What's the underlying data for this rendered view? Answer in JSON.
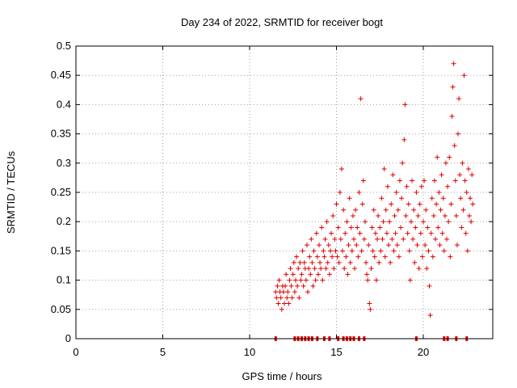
{
  "chart_data": {
    "type": "scatter",
    "title": "Day 234 of 2022, SRMTID for receiver bogt",
    "xlabel": "GPS time / hours",
    "ylabel": "SRMTID / TECUs",
    "xlim": [
      0,
      24
    ],
    "ylim": [
      0,
      0.5
    ],
    "x_ticks": [
      0,
      5,
      10,
      15,
      20
    ],
    "x_tick_labels": [
      "0",
      "5",
      "10",
      "15",
      "20"
    ],
    "y_ticks": [
      0,
      0.05,
      0.1,
      0.15,
      0.2,
      0.25,
      0.3,
      0.35,
      0.4,
      0.45,
      0.5
    ],
    "y_tick_labels": [
      "0",
      "0.05",
      "0.1",
      "0.15",
      "0.2",
      "0.25",
      "0.3",
      "0.35",
      "0.4",
      "0.45",
      "0.5"
    ],
    "grid": true,
    "marker": "+",
    "series": [
      {
        "name": "SRMTID",
        "color": "#e00000",
        "points": [
          [
            11.5,
            0.08
          ],
          [
            11.55,
            0.07
          ],
          [
            11.6,
            0.09
          ],
          [
            11.65,
            0.06
          ],
          [
            11.7,
            0.1
          ],
          [
            11.75,
            0.08
          ],
          [
            11.8,
            0.07
          ],
          [
            11.85,
            0.05
          ],
          [
            11.9,
            0.09
          ],
          [
            11.95,
            0.08
          ],
          [
            12.0,
            0.06
          ],
          [
            12.05,
            0.09
          ],
          [
            12.1,
            0.11
          ],
          [
            12.15,
            0.07
          ],
          [
            12.2,
            0.08
          ],
          [
            12.25,
            0.06
          ],
          [
            12.3,
            0.1
          ],
          [
            12.35,
            0.12
          ],
          [
            12.4,
            0.09
          ],
          [
            12.45,
            0.07
          ],
          [
            12.5,
            0.11
          ],
          [
            12.55,
            0.13
          ],
          [
            12.6,
            0.08
          ],
          [
            12.65,
            0.1
          ],
          [
            12.7,
            0.14
          ],
          [
            12.75,
            0.09
          ],
          [
            12.8,
            0.12
          ],
          [
            12.85,
            0.07
          ],
          [
            12.9,
            0.13
          ],
          [
            12.95,
            0.1
          ],
          [
            13.0,
            0.11
          ],
          [
            13.05,
            0.15
          ],
          [
            13.1,
            0.09
          ],
          [
            13.15,
            0.13
          ],
          [
            13.2,
            0.12
          ],
          [
            13.25,
            0.1
          ],
          [
            13.3,
            0.16
          ],
          [
            13.35,
            0.08
          ],
          [
            13.4,
            0.12
          ],
          [
            13.45,
            0.14
          ],
          [
            13.5,
            0.11
          ],
          [
            13.55,
            0.17
          ],
          [
            13.6,
            0.13
          ],
          [
            13.65,
            0.09
          ],
          [
            13.7,
            0.15
          ],
          [
            13.75,
            0.12
          ],
          [
            13.8,
            0.1
          ],
          [
            13.85,
            0.18
          ],
          [
            13.9,
            0.14
          ],
          [
            13.95,
            0.11
          ],
          [
            14.0,
            0.16
          ],
          [
            14.05,
            0.13
          ],
          [
            14.1,
            0.12
          ],
          [
            14.15,
            0.19
          ],
          [
            14.2,
            0.1
          ],
          [
            14.25,
            0.15
          ],
          [
            14.3,
            0.14
          ],
          [
            14.35,
            0.17
          ],
          [
            14.4,
            0.12
          ],
          [
            14.45,
            0.2
          ],
          [
            14.5,
            0.13
          ],
          [
            14.55,
            0.16
          ],
          [
            14.6,
            0.11
          ],
          [
            14.65,
            0.15
          ],
          [
            14.7,
            0.18
          ],
          [
            14.75,
            0.14
          ],
          [
            14.8,
            0.21
          ],
          [
            14.85,
            0.12
          ],
          [
            14.9,
            0.17
          ],
          [
            14.95,
            0.15
          ],
          [
            15.0,
            0.23
          ],
          [
            15.05,
            0.14
          ],
          [
            15.1,
            0.19
          ],
          [
            15.15,
            0.13
          ],
          [
            15.2,
            0.25
          ],
          [
            15.25,
            0.17
          ],
          [
            15.3,
            0.29
          ],
          [
            15.35,
            0.15
          ],
          [
            15.4,
            0.22
          ],
          [
            15.45,
            0.12
          ],
          [
            15.5,
            0.18
          ],
          [
            15.55,
            0.14
          ],
          [
            15.6,
            0.2
          ],
          [
            15.65,
            0.11
          ],
          [
            15.7,
            0.16
          ],
          [
            15.75,
            0.24
          ],
          [
            15.8,
            0.13
          ],
          [
            15.85,
            0.19
          ],
          [
            15.9,
            0.15
          ],
          [
            15.95,
            0.21
          ],
          [
            16.0,
            0.17
          ],
          [
            16.05,
            0.12
          ],
          [
            16.1,
            0.22
          ],
          [
            16.15,
            0.16
          ],
          [
            16.2,
            0.19
          ],
          [
            16.25,
            0.14
          ],
          [
            16.3,
            0.25
          ],
          [
            16.35,
            0.18
          ],
          [
            16.4,
            0.41
          ],
          [
            16.45,
            0.15
          ],
          [
            16.5,
            0.23
          ],
          [
            16.55,
            0.27
          ],
          [
            16.6,
            0.17
          ],
          [
            16.65,
            0.2
          ],
          [
            16.7,
            0.13
          ],
          [
            16.75,
            0.11
          ],
          [
            16.8,
            0.1
          ],
          [
            16.85,
            0.16
          ],
          [
            16.9,
            0.06
          ],
          [
            16.95,
            0.05
          ],
          [
            17.0,
            0.12
          ],
          [
            17.05,
            0.19
          ],
          [
            17.1,
            0.15
          ],
          [
            17.15,
            0.22
          ],
          [
            17.2,
            0.14
          ],
          [
            17.25,
            0.18
          ],
          [
            17.3,
            0.1
          ],
          [
            17.35,
            0.17
          ],
          [
            17.4,
            0.21
          ],
          [
            17.45,
            0.13
          ],
          [
            17.5,
            0.19
          ],
          [
            17.55,
            0.15
          ],
          [
            17.6,
            0.24
          ],
          [
            17.65,
            0.17
          ],
          [
            17.7,
            0.2
          ],
          [
            17.75,
            0.29
          ],
          [
            17.8,
            0.14
          ],
          [
            17.85,
            0.22
          ],
          [
            17.9,
            0.18
          ],
          [
            17.95,
            0.26
          ],
          [
            18.0,
            0.16
          ],
          [
            18.05,
            0.2
          ],
          [
            18.1,
            0.13
          ],
          [
            18.15,
            0.23
          ],
          [
            18.2,
            0.17
          ],
          [
            18.25,
            0.28
          ],
          [
            18.3,
            0.15
          ],
          [
            18.35,
            0.21
          ],
          [
            18.4,
            0.18
          ],
          [
            18.45,
            0.25
          ],
          [
            18.5,
            0.16
          ],
          [
            18.55,
            0.22
          ],
          [
            18.6,
            0.14
          ],
          [
            18.65,
            0.27
          ],
          [
            18.7,
            0.19
          ],
          [
            18.75,
            0.24
          ],
          [
            18.8,
            0.3
          ],
          [
            18.85,
            0.17
          ],
          [
            18.9,
            0.34
          ],
          [
            18.95,
            0.4
          ],
          [
            19.0,
            0.21
          ],
          [
            19.05,
            0.26
          ],
          [
            19.1,
            0.18
          ],
          [
            19.15,
            0.23
          ],
          [
            19.2,
            0.15
          ],
          [
            19.25,
            0.1
          ],
          [
            19.3,
            0.2
          ],
          [
            19.35,
            0.27
          ],
          [
            19.4,
            0.17
          ],
          [
            19.45,
            0.22
          ],
          [
            19.5,
            0.13
          ],
          [
            19.55,
            0.19
          ],
          [
            19.6,
            0.25
          ],
          [
            19.65,
            0.16
          ],
          [
            19.7,
            0.21
          ],
          [
            19.75,
            0.12
          ],
          [
            19.8,
            0.23
          ],
          [
            19.85,
            0.18
          ],
          [
            19.9,
            0.26
          ],
          [
            19.95,
            0.14
          ],
          [
            20.0,
            0.2
          ],
          [
            20.05,
            0.27
          ],
          [
            20.1,
            0.16
          ],
          [
            20.15,
            0.22
          ],
          [
            20.2,
            0.12
          ],
          [
            20.25,
            0.19
          ],
          [
            20.3,
            0.15
          ],
          [
            20.35,
            0.09
          ],
          [
            20.4,
            0.04
          ],
          [
            20.45,
            0.18
          ],
          [
            20.5,
            0.24
          ],
          [
            20.55,
            0.14
          ],
          [
            20.6,
            0.21
          ],
          [
            20.65,
            0.27
          ],
          [
            20.7,
            0.17
          ],
          [
            20.75,
            0.23
          ],
          [
            20.8,
            0.31
          ],
          [
            20.85,
            0.19
          ],
          [
            20.9,
            0.25
          ],
          [
            20.95,
            0.16
          ],
          [
            21.0,
            0.22
          ],
          [
            21.05,
            0.28
          ],
          [
            21.1,
            0.18
          ],
          [
            21.15,
            0.24
          ],
          [
            21.2,
            0.15
          ],
          [
            21.25,
            0.21
          ],
          [
            21.3,
            0.3
          ],
          [
            21.35,
            0.17
          ],
          [
            21.4,
            0.26
          ],
          [
            21.45,
            0.2
          ],
          [
            21.5,
            0.31
          ],
          [
            21.55,
            0.14
          ],
          [
            21.6,
            0.23
          ],
          [
            21.65,
            0.38
          ],
          [
            21.7,
            0.43
          ],
          [
            21.75,
            0.47
          ],
          [
            21.8,
            0.33
          ],
          [
            21.85,
            0.27
          ],
          [
            21.9,
            0.21
          ],
          [
            21.95,
            0.16
          ],
          [
            22.0,
            0.35
          ],
          [
            22.05,
            0.41
          ],
          [
            22.1,
            0.28
          ],
          [
            22.15,
            0.24
          ],
          [
            22.2,
            0.19
          ],
          [
            22.25,
            0.3
          ],
          [
            22.3,
            0.22
          ],
          [
            22.35,
            0.45
          ],
          [
            22.4,
            0.27
          ],
          [
            22.45,
            0.18
          ],
          [
            22.5,
            0.25
          ],
          [
            22.55,
            0.15
          ],
          [
            22.6,
            0.29
          ],
          [
            22.65,
            0.21
          ],
          [
            22.7,
            0.24
          ],
          [
            22.75,
            0.2
          ],
          [
            22.8,
            0.28
          ],
          [
            22.85,
            0.23
          ]
        ]
      }
    ],
    "zero_markers_x": [
      11.5,
      12.6,
      12.8,
      13.0,
      13.2,
      13.4,
      13.6,
      13.9,
      14.3,
      14.6,
      15.1,
      15.4,
      15.6,
      15.8,
      16.0,
      16.3,
      16.6,
      19.6,
      21.2,
      21.4,
      21.9,
      22.5
    ]
  }
}
